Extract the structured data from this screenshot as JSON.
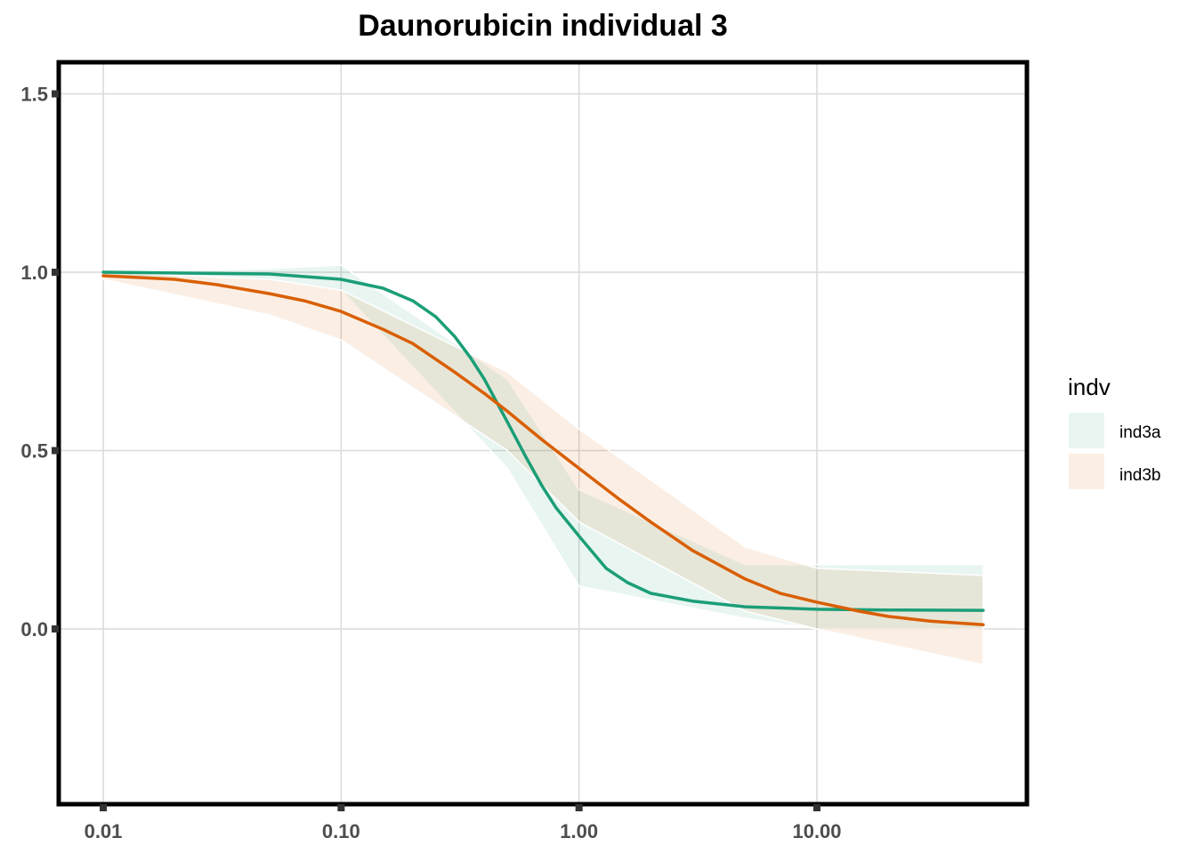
{
  "title": "Daunorubicin individual 3",
  "legend": {
    "title": "indv",
    "placement": "right",
    "entries": [
      {
        "label": "ind3a",
        "color": "#1b9e77"
      },
      {
        "label": "ind3b",
        "color": "#d95f02"
      }
    ]
  },
  "chart_data": {
    "type": "line",
    "title": "Daunorubicin individual 3",
    "xlabel": "",
    "ylabel": "",
    "x_scale": "log10",
    "xlim": [
      0.01,
      50
    ],
    "ylim": [
      -0.48,
      1.6
    ],
    "x_ticks": [
      0.01,
      0.1,
      1,
      10
    ],
    "x_tick_labels": [
      "0.01",
      "0.10",
      "1.00",
      "10.00"
    ],
    "y_ticks": [
      0,
      0.5,
      1,
      1.5
    ],
    "y_tick_labels": [
      "0.0",
      "0.5",
      "1.0",
      "1.5"
    ],
    "grid": true,
    "series": [
      {
        "name": "ind3a",
        "color": "#1b9e77",
        "fill": "#1b9e77",
        "x": [
          0.01,
          0.05,
          0.1,
          0.15,
          0.2,
          0.25,
          0.3,
          0.35,
          0.4,
          0.5,
          0.6,
          0.7,
          0.8,
          1.0,
          1.3,
          1.6,
          2.0,
          3.0,
          5.0,
          10.0,
          20.0,
          50.0
        ],
        "y": [
          1.0,
          0.995,
          0.98,
          0.955,
          0.92,
          0.875,
          0.82,
          0.76,
          0.7,
          0.58,
          0.48,
          0.4,
          0.34,
          0.26,
          0.17,
          0.13,
          0.1,
          0.078,
          0.062,
          0.055,
          0.053,
          0.052
        ],
        "band_x": [
          0.01,
          0.05,
          0.1,
          0.5,
          1.0,
          5.0,
          10.0,
          50.0
        ],
        "band_lower": [
          0.99,
          0.98,
          0.95,
          0.45,
          0.12,
          0.03,
          0.0,
          0.0
        ],
        "band_upper": [
          1.0,
          1.01,
          1.02,
          0.7,
          0.39,
          0.18,
          0.18,
          0.18
        ]
      },
      {
        "name": "ind3b",
        "color": "#d95f02",
        "fill": "#d95f02",
        "x": [
          0.01,
          0.02,
          0.03,
          0.05,
          0.07,
          0.1,
          0.15,
          0.2,
          0.3,
          0.4,
          0.5,
          0.7,
          1.0,
          1.5,
          2.0,
          3.0,
          5.0,
          7.0,
          10.0,
          15.0,
          20.0,
          30.0,
          50.0
        ],
        "y": [
          0.99,
          0.98,
          0.965,
          0.94,
          0.92,
          0.89,
          0.84,
          0.8,
          0.72,
          0.66,
          0.61,
          0.53,
          0.45,
          0.36,
          0.3,
          0.22,
          0.14,
          0.1,
          0.075,
          0.05,
          0.035,
          0.022,
          0.012
        ],
        "band_x": [
          0.01,
          0.05,
          0.1,
          0.5,
          1.0,
          5.0,
          10.0,
          50.0
        ],
        "band_lower": [
          0.98,
          0.88,
          0.81,
          0.5,
          0.3,
          0.05,
          0.0,
          -0.1
        ],
        "band_upper": [
          1.0,
          0.98,
          0.95,
          0.72,
          0.56,
          0.23,
          0.17,
          0.15
        ]
      }
    ]
  }
}
